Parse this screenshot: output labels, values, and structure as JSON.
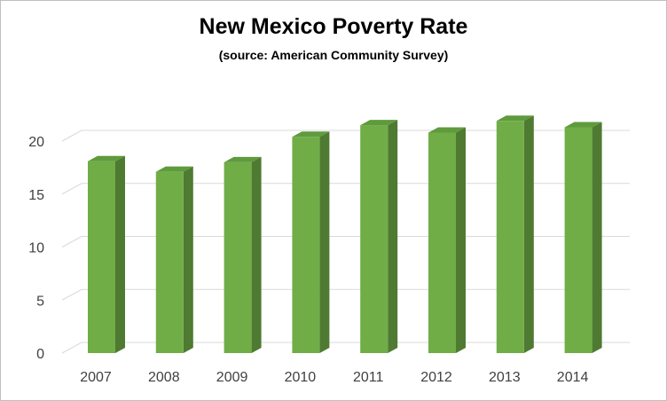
{
  "chart_data": {
    "type": "bar",
    "title": "New Mexico Poverty Rate",
    "subtitle": "(source: American Community Survey)",
    "categories": [
      "2007",
      "2008",
      "2009",
      "2010",
      "2011",
      "2012",
      "2013",
      "2014"
    ],
    "values": [
      18.1,
      17.1,
      18.0,
      20.4,
      21.5,
      20.8,
      21.9,
      21.3
    ],
    "ylim": [
      0,
      20
    ],
    "yticks": [
      0,
      5,
      10,
      15,
      20
    ],
    "ytick_labels": [
      "0",
      "5",
      "10",
      "15",
      "20"
    ],
    "xlabel": "",
    "ylabel": "",
    "grid": true,
    "legend": "none",
    "style": "3d-column",
    "colors": {
      "bar_front": "#70ad47",
      "bar_side": "#4e7a32",
      "bar_top": "#5f9a3c",
      "gridline": "#d9d9d9",
      "border": "#bfbfbf"
    }
  }
}
